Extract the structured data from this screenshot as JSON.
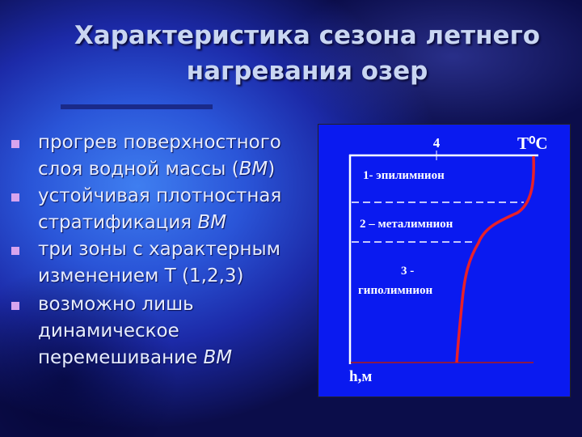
{
  "title": {
    "line1": "Характеристика сезона летнего",
    "line2": "нагревания озер"
  },
  "bullets": [
    {
      "line1": "прогрев поверхностного",
      "line2a": "слоя водной массы (",
      "em": "ВМ",
      "line2b": ")"
    },
    {
      "line1": "устойчивая плотностная",
      "line2a": "стратификация ",
      "em": "ВМ"
    },
    {
      "line1": "три зоны с характерным",
      "line2a": "изменением Т (1,2,3)"
    },
    {
      "line1": "возможно лишь",
      "line2": "динамическое",
      "line3a": "перемешивание ",
      "em": "ВМ"
    }
  ],
  "diagram": {
    "x_axis_label": "T⁰C",
    "y_axis_label": "h,м",
    "tick_label": "4",
    "zone1": "1- эпилимнион",
    "zone2": "2 – металимнион",
    "zone3_num": "3 -",
    "zone3": "гиполимнион",
    "colors": {
      "panel": "#0a1af0",
      "curve": "#e8202a",
      "axes": "#ffffff"
    }
  }
}
